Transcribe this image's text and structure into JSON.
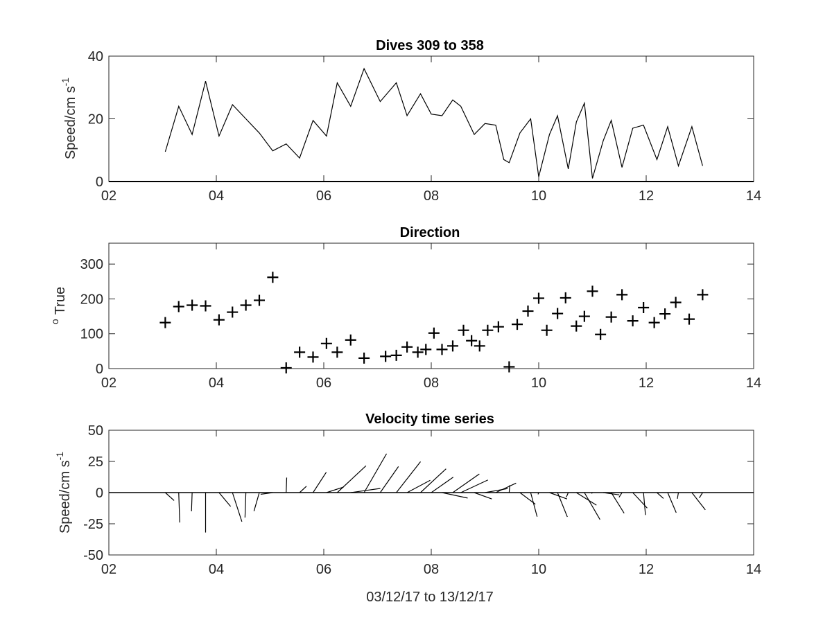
{
  "figure": {
    "xlabel": "03/12/17 to 13/12/17"
  },
  "colors": {
    "line": "#000000",
    "axes": "#262626",
    "background": "#ffffff"
  },
  "chart_data": [
    {
      "type": "line",
      "title": "Dives 309 to 358",
      "ylabel_main": "Speed/cm s",
      "ylabel_sup": "-1",
      "xlim": [
        2,
        14
      ],
      "ylim": [
        0,
        40
      ],
      "xticks": [
        2,
        4,
        6,
        8,
        10,
        12,
        14
      ],
      "xtick_labels": [
        "02",
        "04",
        "06",
        "08",
        "10",
        "12",
        "14"
      ],
      "yticks": [
        0,
        20,
        40
      ],
      "ytick_labels": [
        "0",
        "20",
        "40"
      ],
      "grid": false,
      "baseline": 0,
      "series": [
        {
          "x": [
            3.05,
            3.3,
            3.55,
            3.8,
            4.05,
            4.3,
            4.55,
            4.8,
            5.05,
            5.3,
            5.55,
            5.8,
            6.05,
            6.25,
            6.5,
            6.75,
            7.05,
            7.35,
            7.55,
            7.8,
            8.0,
            8.2,
            8.4,
            8.55,
            8.8,
            9.0,
            9.2,
            9.35,
            9.45,
            9.65,
            9.85,
            10.0,
            10.2,
            10.35,
            10.55,
            10.7,
            10.85,
            11.0,
            11.2,
            11.35,
            11.55,
            11.75,
            11.95,
            12.2,
            12.4,
            12.6,
            12.85,
            13.05
          ],
          "y": [
            9.5,
            24,
            15,
            32,
            14.5,
            24.5,
            20,
            15.5,
            9.8,
            12,
            7.5,
            19.5,
            14.5,
            31.5,
            24,
            36,
            25.5,
            31.5,
            21,
            28,
            21.5,
            21,
            26,
            24,
            15,
            18.5,
            18,
            7,
            6,
            15.5,
            20,
            1.5,
            15,
            21,
            4,
            19,
            25,
            1,
            13,
            19.5,
            4.5,
            17,
            18,
            7,
            17.5,
            5,
            17.5,
            5
          ]
        }
      ]
    },
    {
      "type": "scatter",
      "title": "Direction",
      "ylabel_main": "True",
      "ylabel_sup": "o",
      "xlim": [
        2,
        14
      ],
      "ylim": [
        0,
        360
      ],
      "xticks": [
        2,
        4,
        6,
        8,
        10,
        12,
        14
      ],
      "xtick_labels": [
        "02",
        "04",
        "06",
        "08",
        "10",
        "12",
        "14"
      ],
      "yticks": [
        0,
        100,
        200,
        300
      ],
      "ytick_labels": [
        "0",
        "100",
        "200",
        "300"
      ],
      "grid": false,
      "marker": "plus",
      "series": [
        {
          "x": [
            3.05,
            3.3,
            3.55,
            3.8,
            4.05,
            4.3,
            4.55,
            4.8,
            5.05,
            5.3,
            5.55,
            5.8,
            6.05,
            6.25,
            6.5,
            6.75,
            7.15,
            7.35,
            7.55,
            7.75,
            7.9,
            8.05,
            8.2,
            8.4,
            8.6,
            8.75,
            8.9,
            9.05,
            9.25,
            9.45,
            9.6,
            9.8,
            10.0,
            10.15,
            10.35,
            10.5,
            10.7,
            10.85,
            11.0,
            11.15,
            11.35,
            11.55,
            11.75,
            11.95,
            12.15,
            12.35,
            12.55,
            12.8,
            13.05
          ],
          "y": [
            132,
            178,
            182,
            180,
            140,
            162,
            182,
            196,
            262,
            2,
            47,
            33,
            72,
            47,
            82,
            30,
            35,
            38,
            62,
            47,
            55,
            102,
            55,
            65,
            110,
            80,
            65,
            110,
            120,
            5,
            127,
            165,
            202,
            110,
            158,
            203,
            122,
            150,
            222,
            98,
            148,
            212,
            137,
            175,
            132,
            157,
            190,
            142,
            212
          ]
        }
      ]
    },
    {
      "type": "line",
      "chart_subtype": "stick",
      "title": "Velocity time series",
      "ylabel_main": "Speed/cm s",
      "ylabel_sup": "-1",
      "xlim": [
        2,
        14
      ],
      "ylim": [
        -50,
        50
      ],
      "xticks": [
        2,
        4,
        6,
        8,
        10,
        12,
        14
      ],
      "xtick_labels": [
        "02",
        "04",
        "06",
        "08",
        "10",
        "12",
        "14"
      ],
      "yticks": [
        -50,
        -25,
        0,
        25,
        50
      ],
      "ytick_labels": [
        "-50",
        "-25",
        "0",
        "25",
        "50"
      ],
      "grid": false,
      "baseline": 0,
      "series": [
        {
          "x": [
            3.05,
            3.3,
            3.55,
            3.8,
            4.05,
            4.3,
            4.55,
            4.8,
            5.05,
            5.3,
            5.55,
            5.8,
            6.05,
            6.25,
            6.5,
            6.75,
            7.05,
            7.35,
            7.55,
            7.8,
            8.0,
            8.2,
            8.4,
            8.55,
            8.8,
            9.0,
            9.2,
            9.45,
            9.65,
            9.85,
            10.0,
            10.2,
            10.35,
            10.55,
            10.7,
            10.85,
            11.0,
            11.2,
            11.35,
            11.55,
            11.75,
            11.95,
            12.2,
            12.4,
            12.6,
            12.85,
            13.05
          ],
          "speed": [
            9.5,
            24,
            15,
            32,
            14.5,
            24.5,
            20,
            15.5,
            9.8,
            12,
            7.5,
            19.5,
            14.5,
            31.5,
            24,
            36,
            25.5,
            31.5,
            21,
            28,
            21.5,
            21,
            26,
            24,
            15,
            18.5,
            18,
            6,
            15.5,
            20,
            1.5,
            15,
            21,
            4,
            19,
            25,
            1,
            13,
            19.5,
            4.5,
            17,
            18,
            7,
            17.5,
            5,
            17.5,
            5
          ],
          "direction": [
            132,
            178,
            182,
            180,
            140,
            162,
            182,
            196,
            262,
            2,
            47,
            33,
            72,
            47,
            82,
            30,
            35,
            38,
            62,
            47,
            55,
            102,
            55,
            65,
            110,
            80,
            65,
            5,
            127,
            165,
            202,
            110,
            158,
            203,
            122,
            150,
            222,
            98,
            148,
            212,
            137,
            175,
            132,
            157,
            190,
            142,
            212
          ]
        }
      ]
    }
  ]
}
